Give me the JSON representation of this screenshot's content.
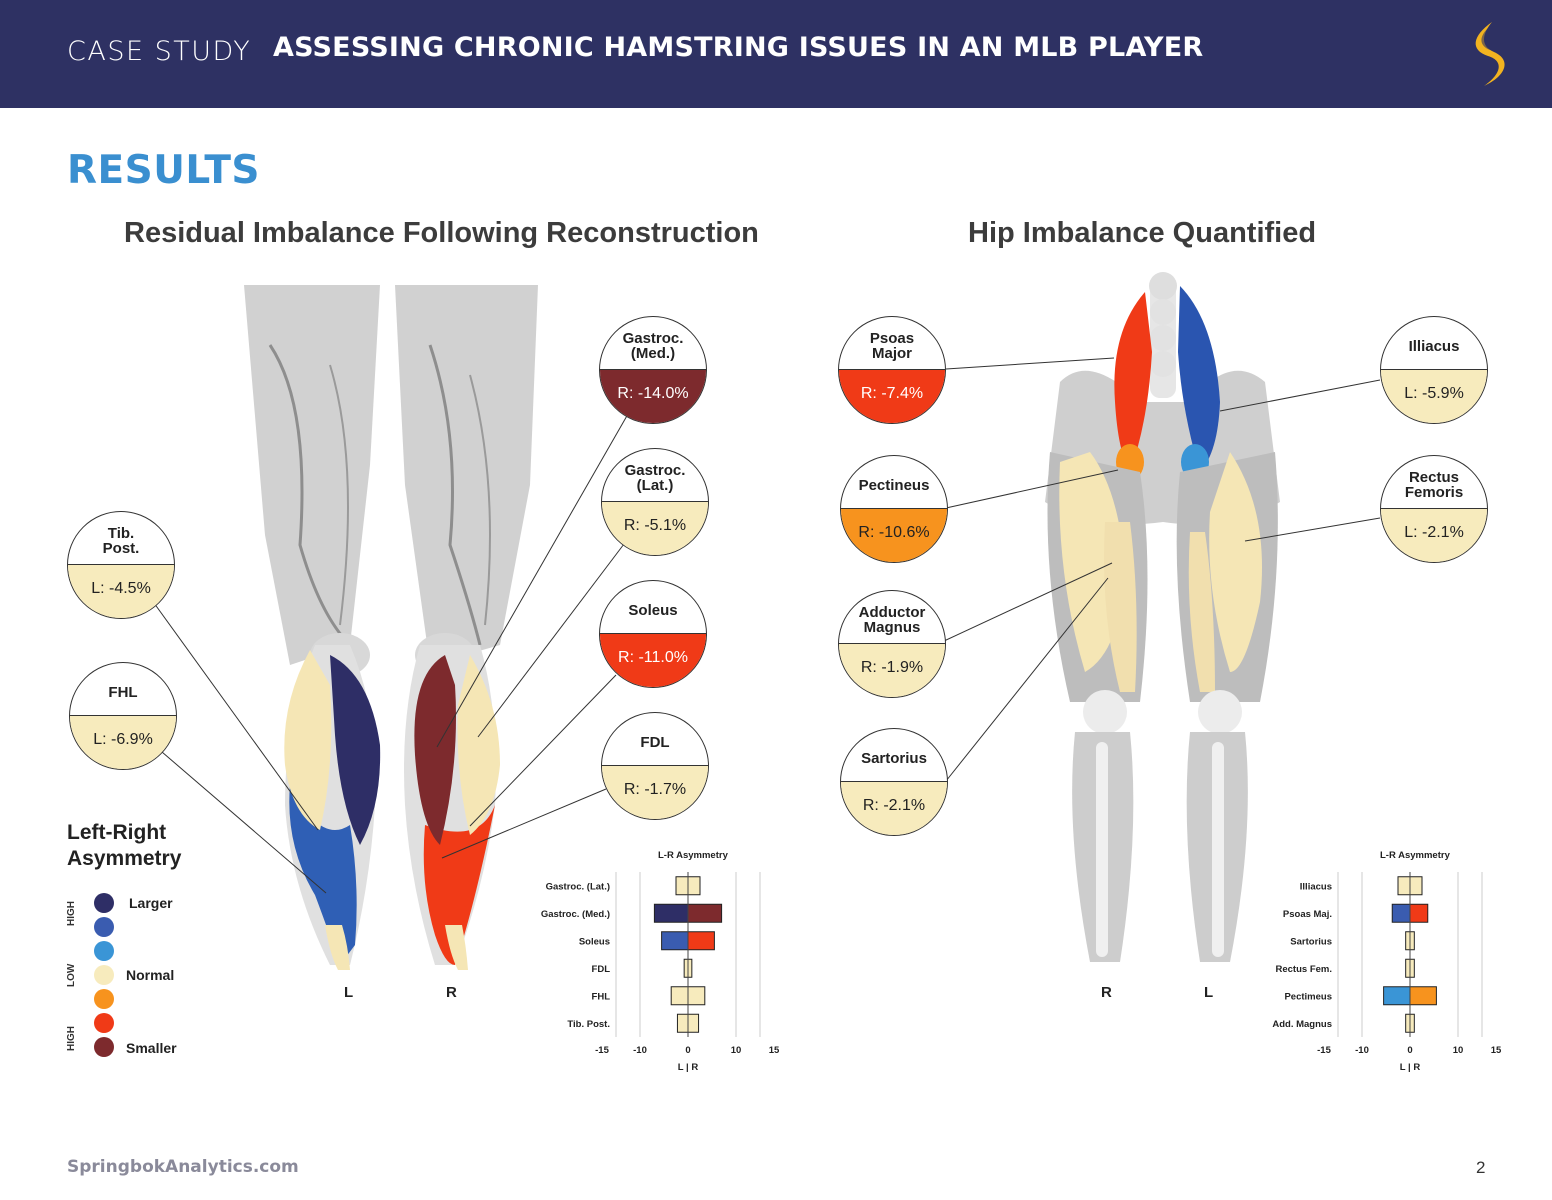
{
  "header": {
    "case_label": "CASE STUDY",
    "title": "ASSESSING CHRONIC HAMSTRING ISSUES IN AN MLB PLAYER",
    "logo_icon": "springbok-logo"
  },
  "results_heading": "RESULTS",
  "left_panel": {
    "title": "Residual Imbalance Following Reconstruction",
    "side_labels": [
      "L",
      "R"
    ],
    "callouts": [
      {
        "name": "Gastroc.\n(Med.)",
        "value": "R: -14.0%",
        "color": "#7d2a2d",
        "text_color": "#ffffff"
      },
      {
        "name": "Gastroc.\n(Lat.)",
        "value": "R: -5.1%",
        "color": "#f7ebbd",
        "text_color": "#222222"
      },
      {
        "name": "Soleus",
        "value": "R: -11.0%",
        "color": "#f03a17",
        "text_color": "#ffffff"
      },
      {
        "name": "FDL",
        "value": "R: -1.7%",
        "color": "#f7ebbd",
        "text_color": "#222222"
      },
      {
        "name": "Tib.\nPost.",
        "value": "L: -4.5%",
        "color": "#f7ebbd",
        "text_color": "#222222"
      },
      {
        "name": "FHL",
        "value": "L: -6.9%",
        "color": "#f7ebbd",
        "text_color": "#222222"
      }
    ]
  },
  "right_panel": {
    "title": "Hip Imbalance Quantified",
    "side_labels": [
      "R",
      "L"
    ],
    "callouts": [
      {
        "name": "Psoas\nMajor",
        "value": "R: -7.4%",
        "color": "#f03a17",
        "text_color": "#ffffff"
      },
      {
        "name": "Pectineus",
        "value": "R: -10.6%",
        "color": "#f7931e",
        "text_color": "#222222"
      },
      {
        "name": "Adductor\nMagnus",
        "value": "R: -1.9%",
        "color": "#f7ebbd",
        "text_color": "#222222"
      },
      {
        "name": "Sartorius",
        "value": "R: -2.1%",
        "color": "#f7ebbd",
        "text_color": "#222222"
      },
      {
        "name": "Illiacus",
        "value": "L: -5.9%",
        "color": "#f7ebbd",
        "text_color": "#222222"
      },
      {
        "name": "Rectus\nFemoris",
        "value": "L: -2.1%",
        "color": "#f7ebbd",
        "text_color": "#222222"
      }
    ]
  },
  "legend": {
    "title_line1": "Left-Right",
    "title_line2": "Asymmetry",
    "labels": {
      "larger": "Larger",
      "normal": "Normal",
      "smaller": "Smaller"
    },
    "axis": {
      "high_top": "HIGH",
      "low": "LOW",
      "high_bottom": "HIGH"
    },
    "colors": [
      "#2e2e66",
      "#3a5cb0",
      "#3a95d6",
      "#f7ebbd",
      "#f7931e",
      "#f03a17",
      "#7d2a2d"
    ]
  },
  "chart_data": [
    {
      "type": "bar",
      "title": "L-R Asymmetry",
      "xlabel": "L | R",
      "xlim": [
        -15,
        15
      ],
      "xticks": [
        -15,
        -10,
        0,
        10,
        15
      ],
      "categories": [
        "Gastroc. (Lat.)",
        "Gastroc. (Med.)",
        "Soleus",
        "FDL",
        "FHL",
        "Tib. Post."
      ],
      "bars": [
        {
          "left": -2.5,
          "right": 2.5,
          "left_color": "#f7ebbd",
          "right_color": "#f7ebbd"
        },
        {
          "left": -7,
          "right": 7,
          "left_color": "#2e2e66",
          "right_color": "#7d2a2d"
        },
        {
          "left": -5.5,
          "right": 5.5,
          "left_color": "#3a5cb0",
          "right_color": "#f03a17"
        },
        {
          "left": -0.8,
          "right": 0.8,
          "left_color": "#f7ebbd",
          "right_color": "#f7ebbd"
        },
        {
          "left": -3.5,
          "right": 3.5,
          "left_color": "#f7ebbd",
          "right_color": "#f7ebbd"
        },
        {
          "left": -2.2,
          "right": 2.2,
          "left_color": "#f7ebbd",
          "right_color": "#f7ebbd"
        }
      ]
    },
    {
      "type": "bar",
      "title": "L-R Asymmetry",
      "xlabel": "L | R",
      "xlim": [
        -15,
        15
      ],
      "xticks": [
        -15,
        -10,
        0,
        10,
        15
      ],
      "categories": [
        "Illiacus",
        "Psoas Maj.",
        "Sartorius",
        "Rectus Fem.",
        "Pectimeus",
        "Add. Magnus"
      ],
      "bars": [
        {
          "left": -2.5,
          "right": 2.5,
          "left_color": "#f7ebbd",
          "right_color": "#f7ebbd"
        },
        {
          "left": -3.7,
          "right": 3.7,
          "left_color": "#3a5cb0",
          "right_color": "#f03a17"
        },
        {
          "left": -0.9,
          "right": 0.9,
          "left_color": "#f7ebbd",
          "right_color": "#f7ebbd"
        },
        {
          "left": -0.9,
          "right": 0.9,
          "left_color": "#f7ebbd",
          "right_color": "#f7ebbd"
        },
        {
          "left": -5.5,
          "right": 5.5,
          "left_color": "#3a95d6",
          "right_color": "#f7931e"
        },
        {
          "left": -0.9,
          "right": 0.9,
          "left_color": "#f7ebbd",
          "right_color": "#f7ebbd"
        }
      ]
    }
  ],
  "footer": {
    "url": "SpringbokAnalytics.com",
    "page": "2"
  }
}
